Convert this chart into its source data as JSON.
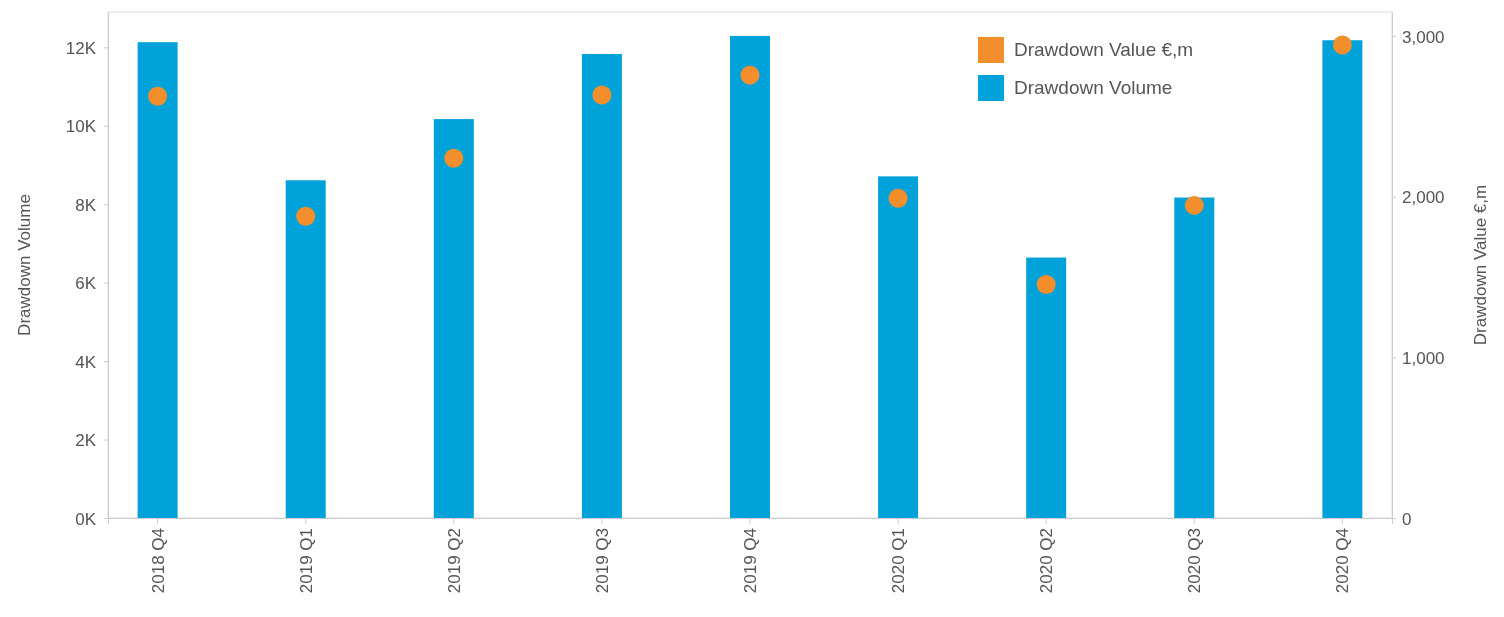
{
  "chart_data": {
    "type": "bar",
    "categories": [
      "2018 Q4",
      "2019 Q1",
      "2019 Q2",
      "2019 Q3",
      "2019 Q4",
      "2020 Q1",
      "2020 Q2",
      "2020 Q3",
      "2020 Q4"
    ],
    "series": [
      {
        "name": "Drawdown Value €,m",
        "type": "scatter",
        "axis": "y2",
        "color": "#f28e2b",
        "values": [
          2626,
          1878,
          2240,
          2633,
          2757,
          1990,
          1454,
          1946,
          2945
        ]
      },
      {
        "name": "Drawdown Volume",
        "type": "bar",
        "color": "#00a2d9",
        "values": [
          12130,
          8610,
          10170,
          11830,
          12290,
          8710,
          6640,
          8170,
          12180
        ]
      }
    ],
    "ylabel": "Drawdown Volume",
    "y2label": "Drawdown Value €,m",
    "ylim": [
      0,
      12900
    ],
    "yticks": [
      {
        "value": 0,
        "label": "0K"
      },
      {
        "value": 2000,
        "label": "2K"
      },
      {
        "value": 4000,
        "label": "4K"
      },
      {
        "value": 6000,
        "label": "6K"
      },
      {
        "value": 8000,
        "label": "8K"
      },
      {
        "value": 10000,
        "label": "10K"
      },
      {
        "value": 12000,
        "label": "12K"
      }
    ],
    "y2lim": [
      0,
      3150
    ],
    "y2ticks": [
      0,
      {
        "value": 1000,
        "label": "1,000"
      },
      {
        "value": 2000,
        "label": "2,000"
      },
      {
        "value": 3000,
        "label": "3,000"
      }
    ],
    "marker": "circle",
    "legend": "top right",
    "grid": false
  }
}
